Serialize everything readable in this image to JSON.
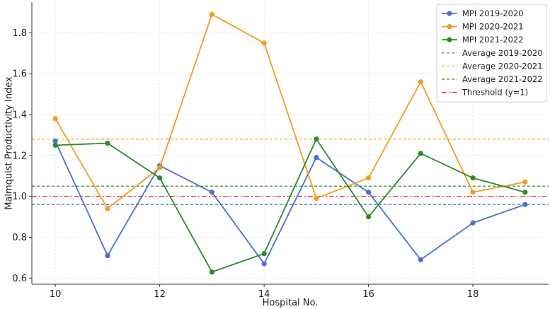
{
  "chart_data": {
    "type": "line",
    "xlabel": "Hospital No.",
    "ylabel": "Malmquist Productivity Index",
    "xlim": [
      9.55,
      19.45
    ],
    "ylim": [
      0.57,
      1.95
    ],
    "xticks": [
      10,
      12,
      14,
      16,
      18
    ],
    "yticks": [
      0.6,
      0.8,
      1.0,
      1.2,
      1.4,
      1.6,
      1.8
    ],
    "ytick_labels": [
      "0.6",
      "0.8",
      "1.0",
      "1.2",
      "1.4",
      "1.6",
      "1.8"
    ],
    "grid": true,
    "legend_position": "top-right",
    "x": [
      10,
      11,
      12,
      13,
      14,
      15,
      16,
      17,
      18,
      19
    ],
    "series": [
      {
        "name": "MPI 2019-2020",
        "color": "#4b6fcf",
        "values": [
          1.27,
          0.71,
          1.15,
          1.02,
          0.67,
          1.19,
          1.02,
          0.69,
          0.87,
          0.96
        ]
      },
      {
        "name": "MPI 2020-2021",
        "color": "#f39c1f",
        "values": [
          1.38,
          0.94,
          1.14,
          1.89,
          1.75,
          0.99,
          1.09,
          1.56,
          1.02,
          1.07
        ]
      },
      {
        "name": "MPI 2021-2022",
        "color": "#2b8a2b",
        "values": [
          1.25,
          1.26,
          1.09,
          0.63,
          0.72,
          1.28,
          0.9,
          1.21,
          1.09,
          1.02
        ]
      }
    ],
    "hlines": [
      {
        "name": "Average 2019-2020",
        "y": 0.96,
        "color": "#4b6fcf",
        "style": "dashed"
      },
      {
        "name": "Average 2020-2021",
        "y": 1.28,
        "color": "#f39c1f",
        "style": "dashed"
      },
      {
        "name": "Average 2021-2022",
        "y": 1.05,
        "color": "#2b8a2b",
        "style": "dashed"
      },
      {
        "name": "Threshold (y=1)",
        "y": 1.0,
        "color": "#d62728",
        "style": "dashdot"
      }
    ]
  }
}
